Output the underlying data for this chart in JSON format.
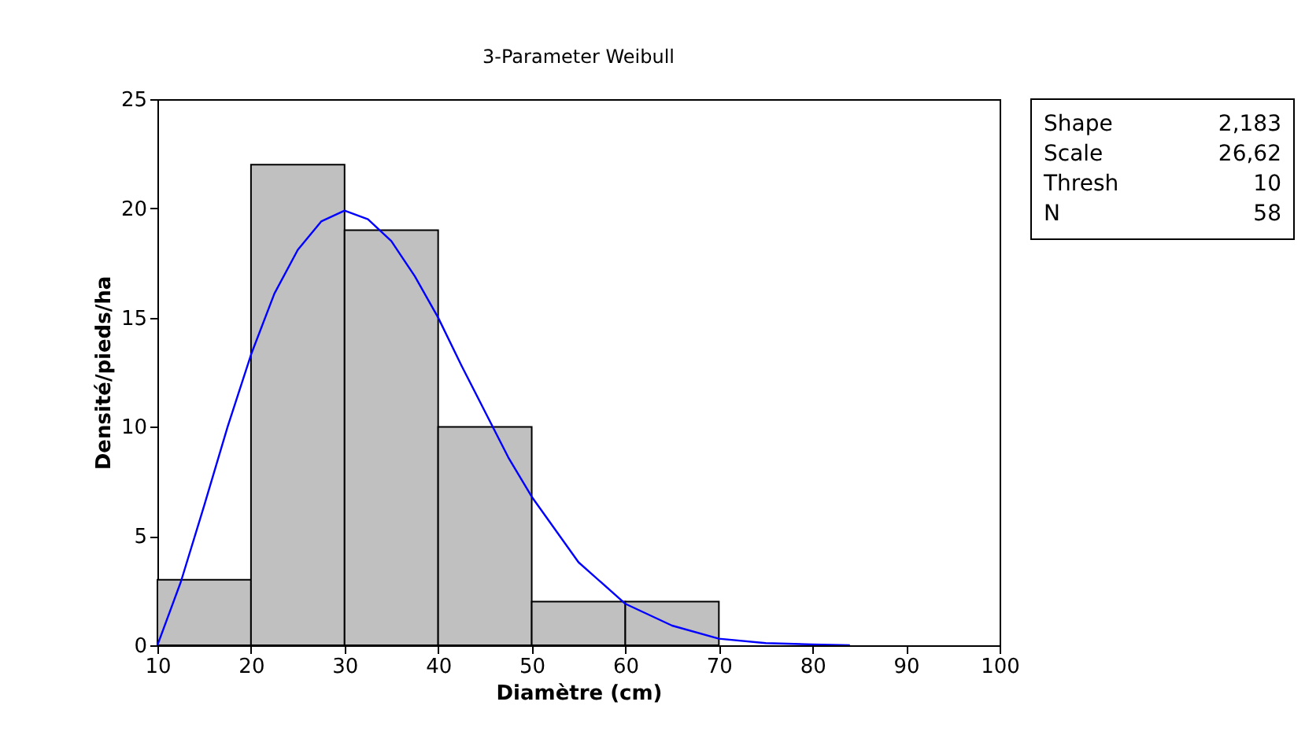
{
  "chart_data": {
    "type": "histogram",
    "title": "3-Parameter Weibull",
    "xlabel": "Diamètre (cm)",
    "ylabel": "Densité/pieds/ha",
    "bins": [
      10,
      20,
      30,
      40,
      50,
      60,
      70
    ],
    "values": [
      3,
      22,
      19,
      10,
      2,
      2
    ],
    "color": "#c0c0c0",
    "series": [
      {
        "type": "line",
        "color": "#0000ff",
        "x": [
          10,
          12.5,
          15,
          17.5,
          20,
          22.5,
          25,
          27.5,
          30,
          32.5,
          35,
          37.5,
          40,
          42.5,
          45,
          47.5,
          50,
          55,
          60,
          65,
          70,
          75,
          80,
          84
        ],
        "values": [
          0,
          2.9,
          6.4,
          10,
          13.3,
          16.1,
          18.1,
          19.4,
          19.9,
          19.5,
          18.5,
          16.9,
          15,
          12.8,
          10.7,
          8.6,
          6.8,
          3.8,
          1.9,
          0.9,
          0.3,
          0.1,
          0.04,
          0
        ]
      }
    ],
    "xlim": [
      10,
      100
    ],
    "xticks": [
      10,
      20,
      30,
      40,
      50,
      60,
      70,
      80,
      90,
      100
    ],
    "ylim": [
      0,
      25
    ],
    "yticks": [
      0,
      5,
      10,
      15,
      20,
      25
    ],
    "grid": false,
    "annotations": [
      "Shape 2,183",
      "Scale 26,62",
      "Thresh 10",
      "N 58"
    ]
  }
}
